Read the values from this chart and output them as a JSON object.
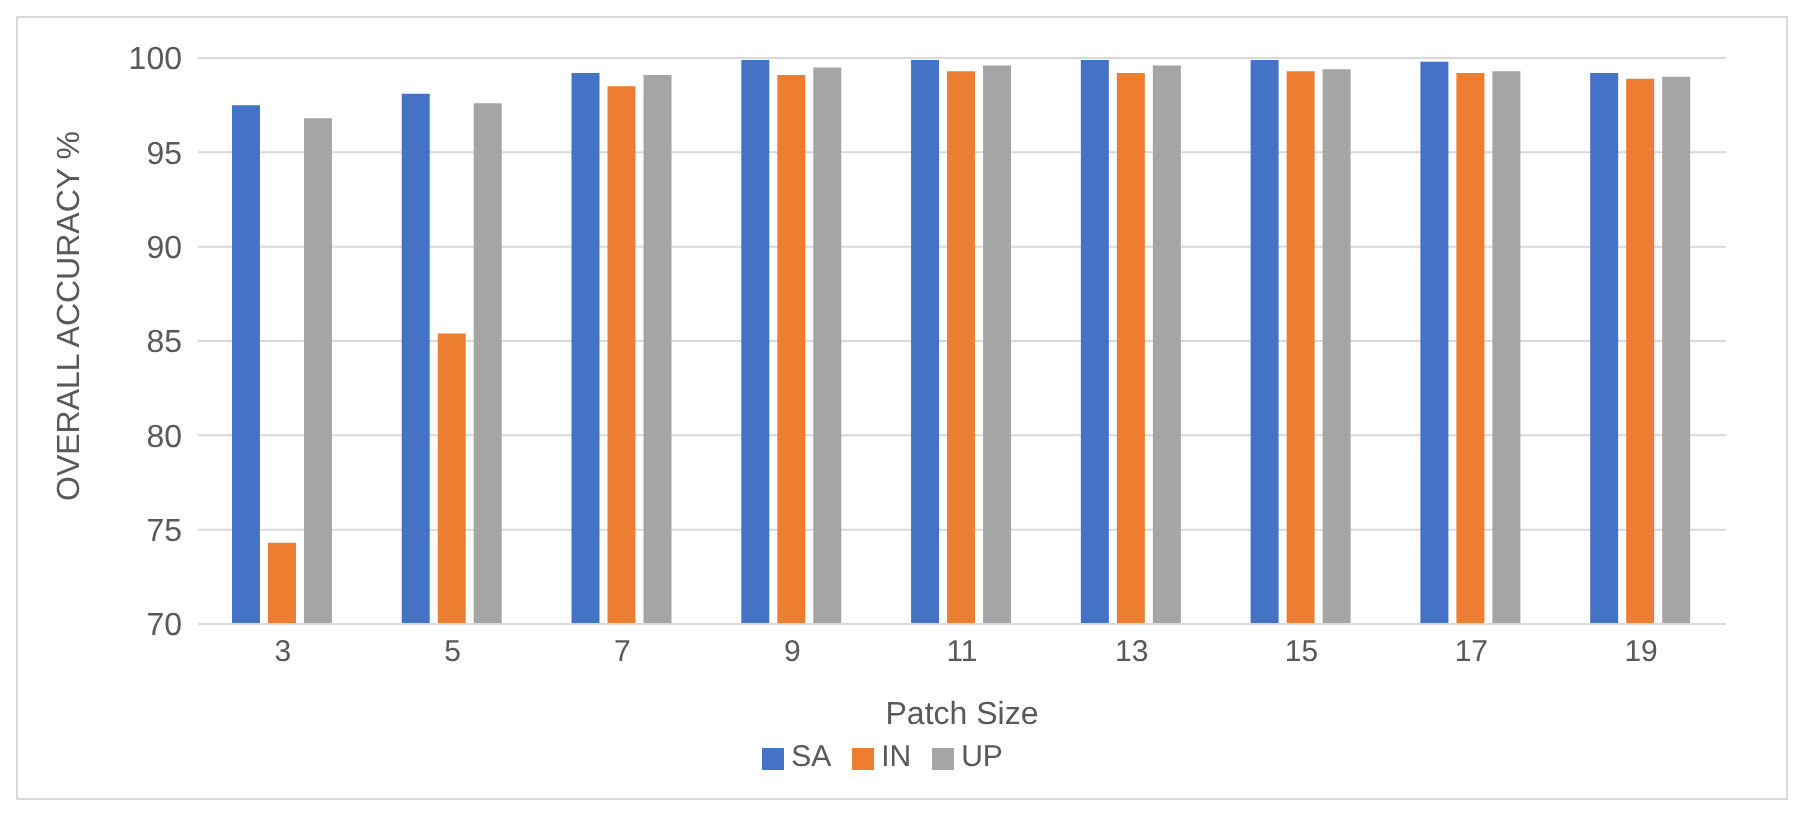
{
  "chart_data": {
    "type": "bar",
    "xlabel": "Patch Size",
    "ylabel": "OVERALL ACCURACY %",
    "categories": [
      "3",
      "5",
      "7",
      "9",
      "11",
      "13",
      "15",
      "17",
      "19"
    ],
    "series": [
      {
        "name": "SA",
        "color": "#4472c4",
        "values": [
          97.5,
          98.1,
          99.2,
          99.9,
          99.9,
          99.9,
          99.9,
          99.8,
          99.2
        ]
      },
      {
        "name": "IN",
        "color": "#ed7d31",
        "values": [
          74.3,
          85.4,
          98.5,
          99.1,
          99.3,
          99.2,
          99.3,
          99.2,
          98.9
        ]
      },
      {
        "name": "UP",
        "color": "#a5a5a5",
        "values": [
          96.8,
          97.6,
          99.1,
          99.5,
          99.6,
          99.6,
          99.4,
          99.3,
          99.0
        ]
      }
    ],
    "ylim": [
      70,
      100
    ],
    "yticks": [
      70,
      75,
      80,
      85,
      90,
      95,
      100
    ],
    "grid": "y",
    "legend": "bottom"
  }
}
